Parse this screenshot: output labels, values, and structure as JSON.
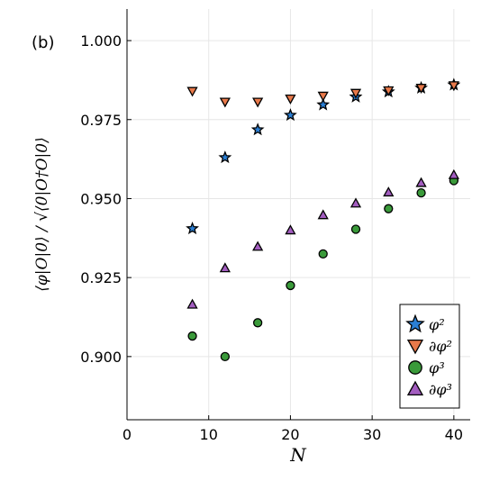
{
  "chart_data": {
    "type": "scatter",
    "panel_label": "(b)",
    "xlabel": "N",
    "ylabel": "⟨φ|O|0⟩ / √⟨0|O†O|0⟩",
    "xlim": [
      0,
      42
    ],
    "ylim": [
      0.88,
      1.01
    ],
    "x_ticks": [
      "0",
      "10",
      "20",
      "30",
      "40"
    ],
    "y_ticks": [
      "0.900",
      "0.925",
      "0.950",
      "0.975",
      "1.000"
    ],
    "x_tick_values": [
      0,
      10,
      20,
      30,
      40
    ],
    "y_tick_values": [
      0.9,
      0.925,
      0.95,
      0.975,
      1.0
    ],
    "grid": true,
    "legend_position": "bottom-right",
    "series": [
      {
        "name": "φ²",
        "marker": "star",
        "color": "#2b7fd4",
        "x": [
          8,
          12,
          16,
          20,
          24,
          28,
          32,
          36,
          40
        ],
        "y": [
          0.9405,
          0.963,
          0.9718,
          0.9764,
          0.9797,
          0.9822,
          0.9838,
          0.985,
          0.986
        ]
      },
      {
        "name": "∂φ²",
        "marker": "triangle-down",
        "color": "#e8794a",
        "x": [
          8,
          12,
          16,
          20,
          24,
          28,
          32,
          36,
          40
        ],
        "y": [
          0.984,
          0.9806,
          0.9806,
          0.9816,
          0.9825,
          0.9834,
          0.9842,
          0.985,
          0.9858
        ]
      },
      {
        "name": "φ³",
        "marker": "circle",
        "color": "#3a9a3a",
        "x": [
          8,
          12,
          16,
          20,
          24,
          28,
          32,
          36,
          40
        ],
        "y": [
          0.9065,
          0.9,
          0.9107,
          0.9225,
          0.9325,
          0.9403,
          0.9468,
          0.9518,
          0.9557
        ]
      },
      {
        "name": "∂φ³",
        "marker": "triangle-up",
        "color": "#a35dc0",
        "x": [
          8,
          12,
          16,
          20,
          24,
          28,
          32,
          36,
          40
        ],
        "y": [
          0.9165,
          0.928,
          0.9348,
          0.94,
          0.9448,
          0.9485,
          0.952,
          0.955,
          0.9575
        ]
      }
    ]
  }
}
